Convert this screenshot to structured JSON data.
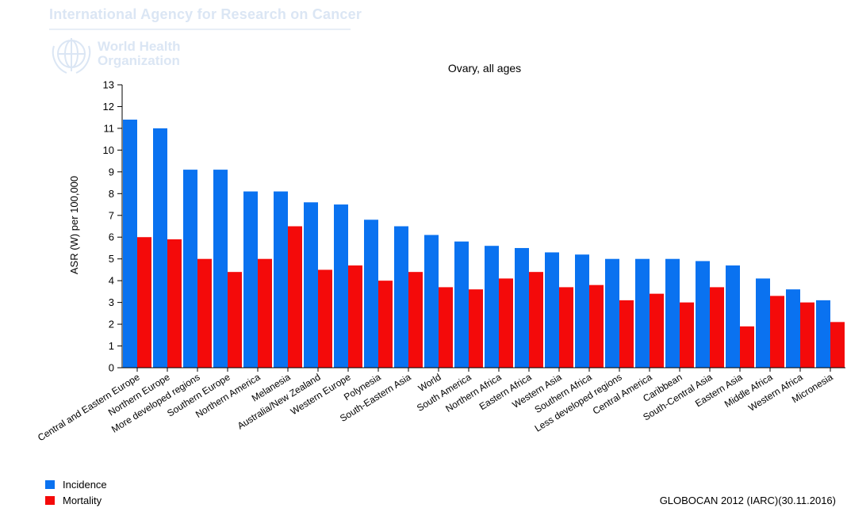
{
  "header": {
    "organization": "International Agency for Research on Cancer",
    "who_line1": "World Health",
    "who_line2": "Organization"
  },
  "chart_data": {
    "type": "bar",
    "title": "Ovary, all ages",
    "ylabel": "ASR (W) per 100,000",
    "xlabel": "",
    "ylim": [
      0,
      13
    ],
    "yticks": [
      0,
      1,
      2,
      3,
      4,
      5,
      6,
      7,
      8,
      9,
      10,
      11,
      12,
      13
    ],
    "categories": [
      "Central and Eastern Europe",
      "Northern Europe",
      "More developed regions",
      "Southern Europe",
      "Northern America",
      "Melanesia",
      "Australia/New Zealand",
      "Western Europe",
      "Polynesia",
      "South-Eastern Asia",
      "World",
      "South America",
      "Northern Africa",
      "Eastern Africa",
      "Western Asia",
      "Southern Africa",
      "Less developed regions",
      "Central America",
      "Caribbean",
      "South-Central Asia",
      "Eastern Asia",
      "Middle Africa",
      "Western Africa",
      "Micronesia"
    ],
    "series": [
      {
        "name": "Incidence",
        "color": "#0a72f0",
        "values": [
          11.4,
          11.0,
          9.1,
          9.1,
          8.1,
          8.1,
          7.6,
          7.5,
          6.8,
          6.5,
          6.1,
          5.8,
          5.6,
          5.5,
          5.3,
          5.2,
          5.0,
          5.0,
          5.0,
          4.9,
          4.7,
          4.1,
          3.6,
          3.1
        ]
      },
      {
        "name": "Mortality",
        "color": "#f40a0a",
        "values": [
          6.0,
          5.9,
          5.0,
          4.4,
          5.0,
          6.5,
          4.5,
          4.7,
          4.0,
          4.4,
          3.7,
          3.6,
          4.1,
          4.4,
          3.7,
          3.8,
          3.1,
          3.4,
          3.0,
          3.7,
          1.9,
          3.3,
          3.0,
          2.1
        ]
      }
    ],
    "grid": false,
    "legend_position": "bottom-left"
  },
  "legend": {
    "incidence": "Incidence",
    "mortality": "Mortality"
  },
  "source": "GLOBOCAN 2012 (IARC)(30.11.2016)"
}
